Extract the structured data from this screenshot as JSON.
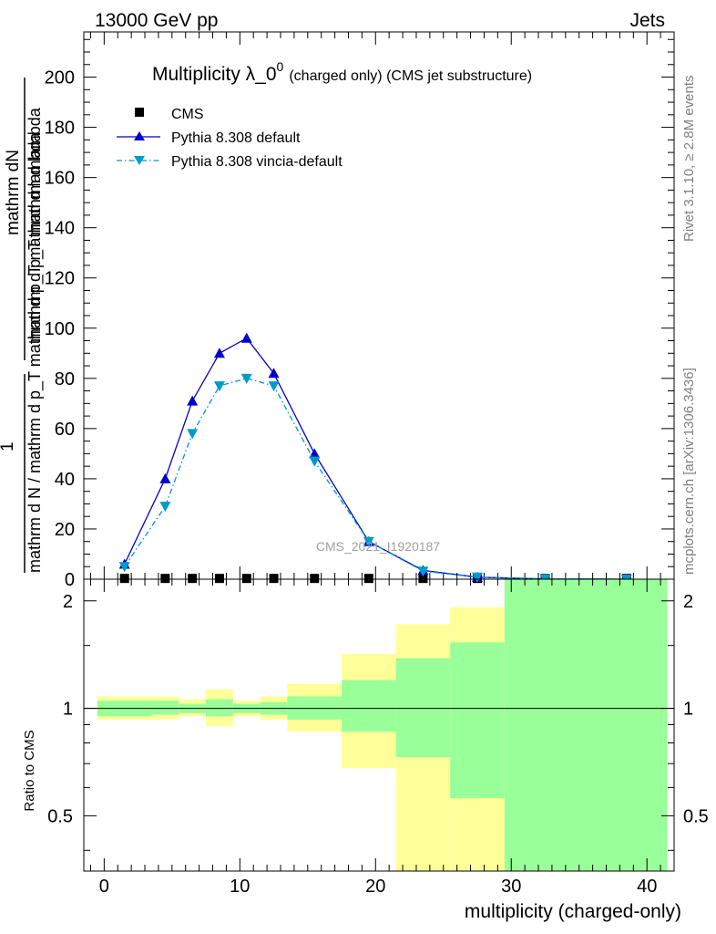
{
  "header": {
    "energy_label": "13000 GeV pp",
    "process_label": "Jets"
  },
  "side_text": {
    "rivet": "Rivet 3.1.10, ≥ 2.8M events",
    "mcplots": "mcplots.cern.ch [arXiv:1306.3436]"
  },
  "watermark": "CMS_2021_I1920187",
  "chart_data": [
    {
      "type": "line",
      "title": "Multiplicity λ_0⁰",
      "title_base": "Multiplicity λ_0",
      "title_sup": "0",
      "title_suffix": "(charged only) (CMS jet substructure)",
      "ylabel_top": "1",
      "ylabel_num": "mathrm dN",
      "ylabel_den1": "mathrm d p_T mathrm d lambda",
      "ylabel_den2": "mathrm d N / mathrm d p_T mathrm d p_T mathrm d lambda",
      "ylabel_lines": [
        "mathrm d N / mathrm d p_T mathrm d p_T mathrm d lambda",
        "mathrm d p_T mathrm d lambda"
      ],
      "xlim": [
        -1.5,
        42
      ],
      "ylim": [
        0,
        218
      ],
      "y_ticks": [
        "0",
        "20",
        "40",
        "60",
        "80",
        "100",
        "120",
        "140",
        "160",
        "180",
        "200"
      ],
      "y_tick_values": [
        0,
        20,
        40,
        60,
        80,
        100,
        120,
        140,
        160,
        180,
        200
      ],
      "legend_position": "top-left",
      "series": [
        {
          "name": "CMS",
          "color": "#000000",
          "marker": "square",
          "x": [
            1.5,
            4.5,
            6.5,
            8.5,
            10.5,
            12.5,
            15.5,
            19.5,
            23.5,
            27.5,
            32.5,
            38.5
          ],
          "y": [
            0.3,
            0.3,
            0.3,
            0.3,
            0.3,
            0.3,
            0.3,
            0.3,
            0.3,
            0.3,
            0.3,
            0.3
          ]
        },
        {
          "name": "Pythia 8.308 default",
          "color": "#0000cc",
          "marker": "triangle-up",
          "line": "solid",
          "x": [
            1.5,
            4.5,
            6.5,
            8.5,
            10.5,
            12.5,
            15.5,
            19.5,
            23.5,
            27.5,
            32.5,
            38.5
          ],
          "y": [
            6,
            40,
            71,
            90,
            96,
            82,
            50,
            15,
            3.5,
            0.8,
            0.1,
            0.0
          ]
        },
        {
          "name": "Pythia 8.308 vincia-default",
          "color": "#0099cc",
          "marker": "triangle-down",
          "line": "dash-dot",
          "x": [
            1.5,
            4.5,
            6.5,
            8.5,
            10.5,
            12.5,
            15.5,
            19.5,
            23.5,
            27.5,
            32.5,
            38.5
          ],
          "y": [
            5,
            29,
            58,
            77,
            80,
            77,
            47,
            15,
            3.2,
            0.8,
            0.15,
            0.0
          ]
        }
      ]
    },
    {
      "type": "area",
      "ylabel": "Ratio to CMS",
      "xlabel": "multiplicity (charged-only)",
      "xlim": [
        -1.5,
        42
      ],
      "ylim": [
        0.35,
        2.3
      ],
      "y_scale": "log",
      "x_ticks": [
        "0",
        "10",
        "20",
        "30",
        "40"
      ],
      "x_tick_values": [
        0,
        10,
        20,
        30,
        40
      ],
      "y_ticks": [
        "0.5",
        "1",
        "2"
      ],
      "y_tick_values": [
        0.5,
        1,
        2
      ],
      "reference_line": 1,
      "band_colors": {
        "outer": "#ffff99",
        "inner": "#99ff99"
      },
      "bins": [
        {
          "x0": -0.5,
          "x1": 3.5,
          "outer": [
            0.93,
            1.08
          ],
          "inner": [
            0.95,
            1.05
          ]
        },
        {
          "x0": 3.5,
          "x1": 5.5,
          "outer": [
            0.93,
            1.08
          ],
          "inner": [
            0.96,
            1.05
          ]
        },
        {
          "x0": 5.5,
          "x1": 7.5,
          "outer": [
            0.95,
            1.06
          ],
          "inner": [
            0.97,
            1.03
          ]
        },
        {
          "x0": 7.5,
          "x1": 9.5,
          "outer": [
            0.89,
            1.13
          ],
          "inner": [
            0.95,
            1.06
          ]
        },
        {
          "x0": 9.5,
          "x1": 11.5,
          "outer": [
            0.95,
            1.05
          ],
          "inner": [
            0.97,
            1.03
          ]
        },
        {
          "x0": 11.5,
          "x1": 13.5,
          "outer": [
            0.93,
            1.08
          ],
          "inner": [
            0.96,
            1.04
          ]
        },
        {
          "x0": 13.5,
          "x1": 17.5,
          "outer": [
            0.86,
            1.17
          ],
          "inner": [
            0.93,
            1.08
          ]
        },
        {
          "x0": 17.5,
          "x1": 21.5,
          "outer": [
            0.68,
            1.42
          ],
          "inner": [
            0.86,
            1.2
          ]
        },
        {
          "x0": 21.5,
          "x1": 25.5,
          "outer": [
            0.35,
            1.72
          ],
          "inner": [
            0.73,
            1.38
          ]
        },
        {
          "x0": 25.5,
          "x1": 29.5,
          "outer": [
            0.35,
            1.92
          ],
          "inner": [
            0.56,
            1.53
          ]
        },
        {
          "x0": 29.5,
          "x1": 41.5,
          "outer": [
            0.35,
            2.3
          ],
          "inner": [
            0.35,
            2.3
          ]
        }
      ]
    }
  ]
}
